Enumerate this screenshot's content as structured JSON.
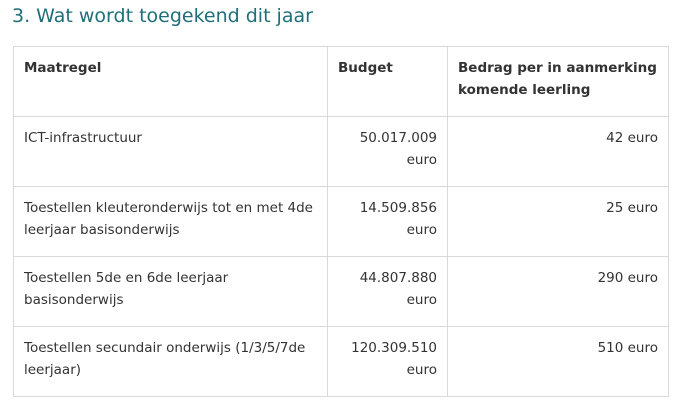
{
  "section": {
    "title": "3. Wat wordt toegekend dit jaar"
  },
  "table": {
    "headers": {
      "maatregel": "Maatregel",
      "budget": "Budget",
      "bedrag": "Bedrag per in aanmerking komende leerling"
    },
    "rows": [
      {
        "maatregel": "ICT-infrastructuur",
        "budget": "50.017.009 euro",
        "bedrag": "42 euro"
      },
      {
        "maatregel": "Toestellen kleuteronderwijs tot en met 4de leerjaar basisonderwijs",
        "budget": "14.509.856 euro",
        "bedrag": "25 euro"
      },
      {
        "maatregel": "Toestellen 5de en 6de leerjaar basisonderwijs",
        "budget": "44.807.880 euro",
        "bedrag": "290 euro"
      },
      {
        "maatregel": "Toestellen secundair onderwijs (1/3/5/7de leerjaar)",
        "budget": "120.309.510 euro",
        "bedrag": "510 euro"
      }
    ]
  },
  "colors": {
    "heading": "#1f6f7a",
    "text": "#333333",
    "border": "#d9d9d9"
  }
}
